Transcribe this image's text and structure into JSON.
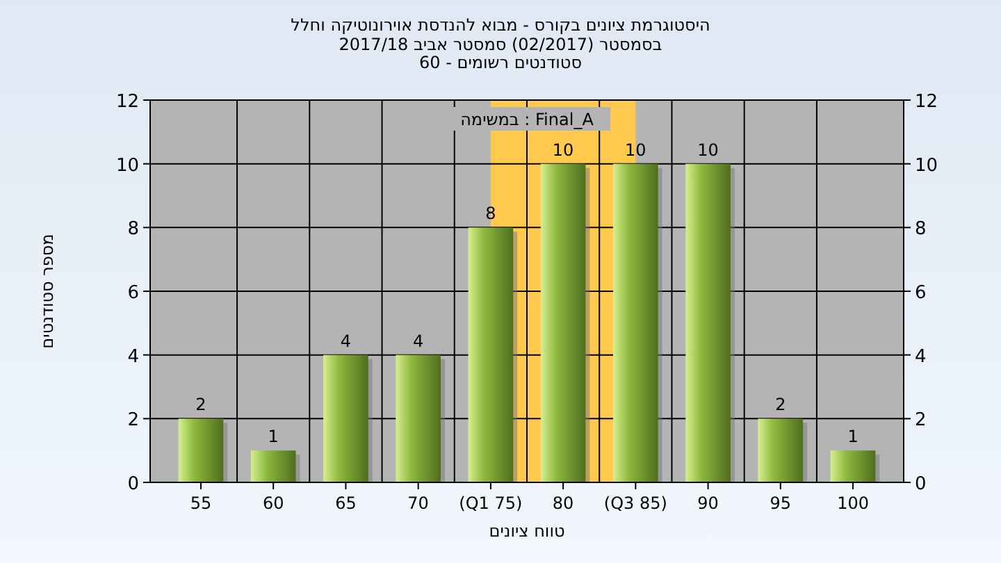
{
  "chart_data": {
    "type": "bar",
    "title": "היסטוגרמת ציונים בקורס - מבוא להנדסת אוירונוטיקה וחלל",
    "subtitle": "בסמסטר  (02/2017)  סמסטר אביב 2017/18\nסטודנטים רשומים - 60",
    "xlabel": "טווח ציונים",
    "ylabel": "מספר סטודנטים",
    "annotations": [
      "במשימה : Final_A"
    ],
    "categories": [
      "55",
      "60",
      "65",
      "70",
      "(Q1 75)",
      "80",
      "(Q3 85)",
      "90",
      "95",
      "100"
    ],
    "values": [
      2,
      1,
      4,
      4,
      8,
      10,
      10,
      10,
      2,
      1
    ],
    "color": "#8db83e",
    "bands": [
      {
        "axis": "x",
        "from": "(Q1 75)",
        "to": "(Q3 85)",
        "color": "#ffc94d"
      }
    ],
    "ylim": [
      0,
      12
    ],
    "yticks": [
      0,
      2,
      4,
      6,
      8,
      10,
      12
    ],
    "y2lim": [
      0,
      12
    ],
    "y2ticks": [
      0,
      2,
      4,
      6,
      8,
      10,
      12
    ],
    "grid": true,
    "data_labels": true
  }
}
